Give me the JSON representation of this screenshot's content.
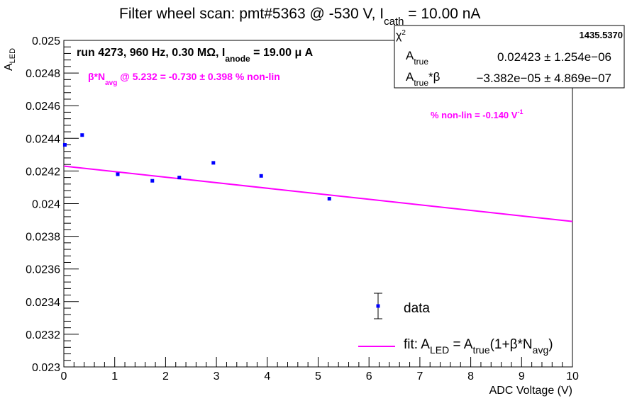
{
  "title": {
    "main": "Filter wheel scan: pmt#5363 @  -530 V, I",
    "sub": "cath",
    "tail": " = 10.00 nA"
  },
  "annotations": {
    "run_main": "run 4273, 960 Hz, 0.30 MΩ, I",
    "run_sub": "anode",
    "run_tail": " = 19.00 μ A",
    "beta_main": "β*N",
    "beta_sub": "avg",
    "beta_tail": " @ 5.232 = -0.730 ± 0.398 % non-lin",
    "nonlin_main": "% non-lin = -0.140 V",
    "nonlin_sup": "-1"
  },
  "stats": {
    "chi2_label": "χ",
    "chi2_sup": "2",
    "chi2_value": "1435.5370",
    "a_label": "A",
    "a_sub": "true",
    "a_value": "0.02423 ± 1.254e−06",
    "ab_label": "A",
    "ab_sub": "true",
    "ab_tail": "*β",
    "ab_value": "−3.382e−05 ± 4.869e−07"
  },
  "legend": {
    "data_label": "data",
    "fit_main": "fit: A",
    "fit_sub1": "LED",
    "fit_mid": " = A",
    "fit_sub2": "true",
    "fit_mid2": "(1+β*N",
    "fit_sub3": "avg",
    "fit_end": ")"
  },
  "axes": {
    "xlabel": "ADC Voltage (V)",
    "ylabel_main": "A",
    "ylabel_sub": "LED"
  },
  "colors": {
    "data": "#0000ff",
    "fit": "#ff00ff",
    "annotation": "#ff00ff"
  },
  "chart_data": {
    "type": "scatter",
    "xlim": [
      0,
      10
    ],
    "ylim": [
      0.023,
      0.025
    ],
    "x_ticks": [
      "0",
      "1",
      "2",
      "3",
      "4",
      "5",
      "6",
      "7",
      "8",
      "9",
      "10"
    ],
    "y_ticks": [
      "0.023",
      "0.0232",
      "0.0234",
      "0.0236",
      "0.0238",
      "0.024",
      "0.0242",
      "0.0244",
      "0.0246",
      "0.0248",
      "0.025"
    ],
    "series": [
      {
        "name": "data",
        "x": [
          0.02,
          0.36,
          1.06,
          1.74,
          2.27,
          2.94,
          3.88,
          5.22
        ],
        "y": [
          0.02436,
          0.02442,
          0.02418,
          0.02414,
          0.02416,
          0.02425,
          0.02417,
          0.02403
        ]
      }
    ],
    "fit": {
      "name": "fit",
      "x": [
        0,
        10
      ],
      "y": [
        0.02423,
        0.023891
      ]
    }
  }
}
